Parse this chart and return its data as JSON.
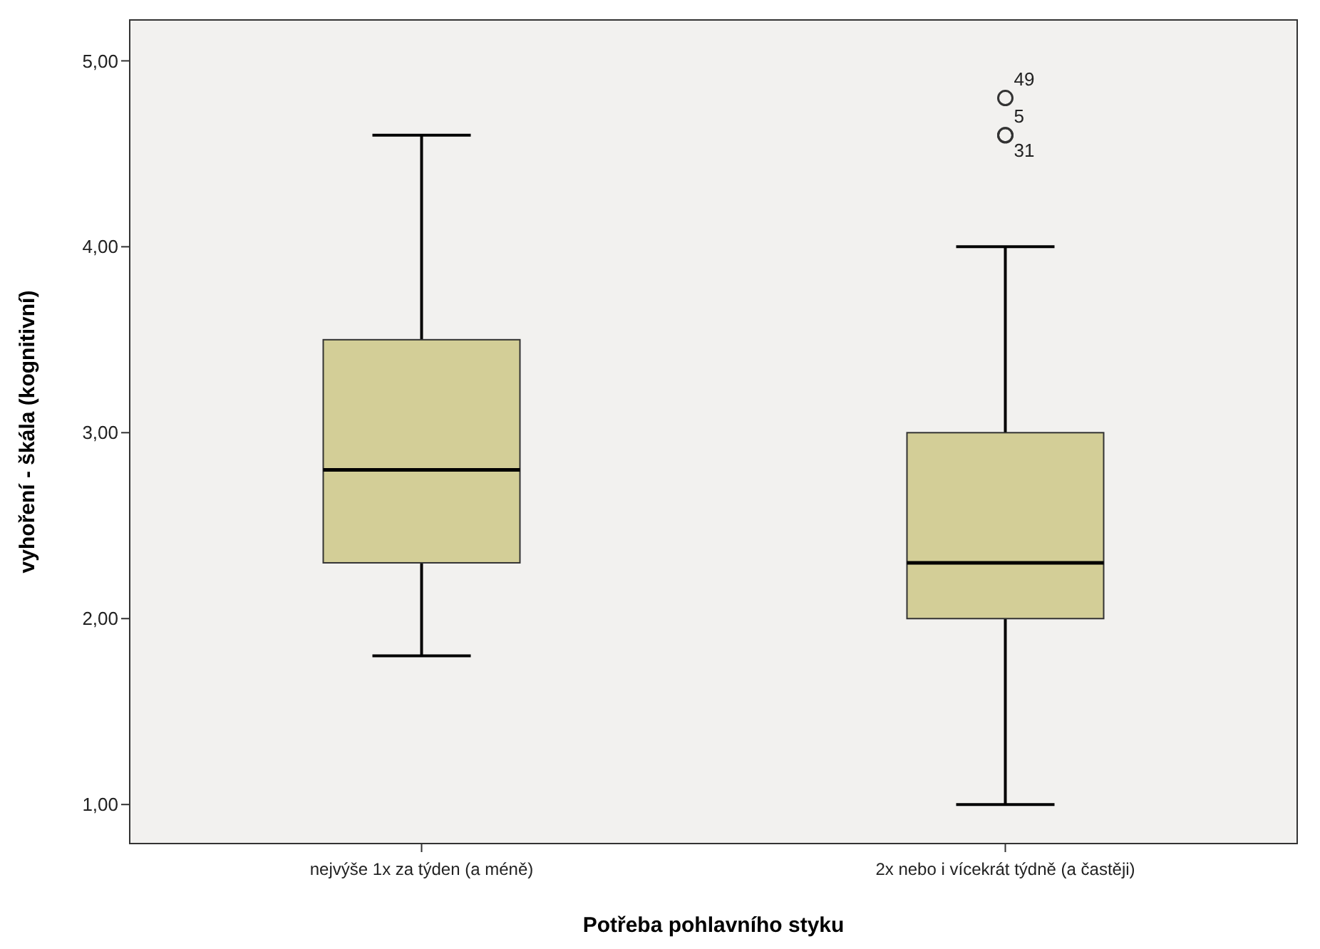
{
  "chart_data": {
    "type": "box",
    "xlabel": "Potřeba pohlavního styku",
    "ylabel": "vyhoření - škála (kognitivní)",
    "categories": [
      "nejvýše 1x za týden (a méně)",
      "2x nebo i vícekrát týdně (a častěji)"
    ],
    "boxes": [
      {
        "low": 1.8,
        "q1": 2.3,
        "median": 2.8,
        "q3": 3.5,
        "high": 4.6
      },
      {
        "low": 1.0,
        "q1": 2.0,
        "median": 2.3,
        "q3": 3.0,
        "high": 4.0,
        "outliers": [
          4.8,
          4.6,
          4.6
        ]
      }
    ],
    "color": "#d3ce97",
    "ylim": [
      0.79,
      5.22
    ],
    "yticks": [
      {
        "value": 1,
        "label": "1,00"
      },
      {
        "value": 2,
        "label": "2,00"
      },
      {
        "value": 3,
        "label": "3,00"
      },
      {
        "value": 4,
        "label": "4,00"
      },
      {
        "value": 5,
        "label": "5,00"
      }
    ],
    "grid": false,
    "annotations": [
      "49",
      "5",
      "31"
    ]
  }
}
